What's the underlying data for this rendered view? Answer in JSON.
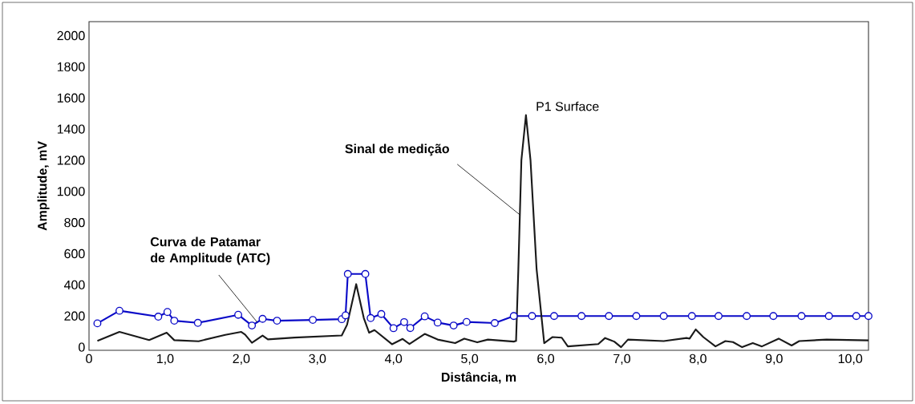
{
  "chart_data": {
    "type": "line",
    "xlabel": "Distância, m",
    "ylabel": "Amplitude, mV",
    "xlim": [
      0,
      10.24
    ],
    "ylim": [
      -20,
      2090
    ],
    "xticks": [
      0,
      {
        "value": 1,
        "label": "1,0"
      },
      {
        "value": 2,
        "label": "2,0"
      },
      {
        "value": 3,
        "label": "3,0"
      },
      {
        "value": 4,
        "label": "4,0"
      },
      {
        "value": 5,
        "label": "5,0"
      },
      {
        "value": 6,
        "label": "6,0"
      },
      {
        "value": 7,
        "label": "7,0"
      },
      {
        "value": 8,
        "label": "8,0"
      },
      {
        "value": 9,
        "label": "9,0"
      },
      {
        "value": 10,
        "label": "10,0"
      }
    ],
    "yticks": [
      0,
      200,
      400,
      600,
      800,
      1000,
      1200,
      1400,
      1600,
      1800,
      2000
    ],
    "grid": false,
    "series": [
      {
        "color": "#0a0ac8",
        "marker": "circle",
        "x": [
          0.11,
          0.4,
          0.91,
          1.03,
          1.12,
          1.43,
          1.96,
          2.14,
          2.28,
          2.47,
          2.94,
          3.32,
          3.37,
          3.4,
          3.63,
          3.7,
          3.84,
          4.0,
          4.14,
          4.22,
          4.41,
          4.58,
          4.79,
          4.96,
          5.33,
          5.58,
          5.82,
          6.11,
          6.47,
          6.83,
          7.19,
          7.55,
          7.92,
          8.27,
          8.64,
          8.99,
          9.36,
          9.72,
          10.08,
          10.24
        ],
        "values": [
          153,
          234,
          196,
          226,
          170,
          156,
          208,
          139,
          182,
          170,
          175,
          180,
          204,
          470,
          470,
          187,
          213,
          122,
          161,
          123,
          198,
          158,
          139,
          162,
          155,
          200,
          200,
          200,
          200,
          200,
          200,
          200,
          200,
          200,
          200,
          200,
          200,
          200,
          200,
          200
        ]
      },
      {
        "color": "#1a1a1a",
        "x": [
          0.11,
          0.4,
          0.79,
          1.02,
          1.12,
          1.44,
          1.79,
          2.0,
          2.05,
          2.14,
          2.28,
          2.35,
          2.7,
          3.32,
          3.39,
          3.51,
          3.61,
          3.68,
          3.75,
          3.98,
          4.12,
          4.21,
          4.41,
          4.58,
          4.81,
          4.93,
          5.1,
          5.24,
          5.58,
          5.61,
          5.64,
          5.68,
          5.74,
          5.8,
          5.88,
          5.98,
          6.09,
          6.21,
          6.29,
          6.69,
          6.78,
          6.9,
          6.99,
          7.08,
          7.55,
          7.85,
          7.89,
          7.97,
          8.07,
          8.23,
          8.36,
          8.46,
          8.58,
          8.72,
          8.84,
          9.06,
          9.23,
          9.33,
          9.69,
          10.24
        ],
        "values": [
          41,
          98,
          46,
          93,
          45,
          38,
          79,
          98,
          81,
          28,
          75,
          50,
          62,
          75,
          144,
          405,
          187,
          93,
          110,
          19,
          53,
          20,
          85,
          49,
          26,
          55,
          31,
          49,
          36,
          40,
          500,
          1200,
          1490,
          1200,
          500,
          26,
          65,
          61,
          5,
          20,
          59,
          36,
          0,
          49,
          39,
          59,
          55,
          114,
          65,
          5,
          39,
          33,
          0,
          26,
          5,
          55,
          11,
          39,
          49,
          44
        ]
      }
    ],
    "annotations": [
      {
        "text": "P1 Surface",
        "x": 5.74,
        "y": 1490
      },
      {
        "text": "Sinal de medição",
        "x": 5.66,
        "y": 850
      },
      {
        "text": "Curva de Patamar de Amplitude (ATC)",
        "x": 2.21,
        "y": 160
      }
    ]
  }
}
